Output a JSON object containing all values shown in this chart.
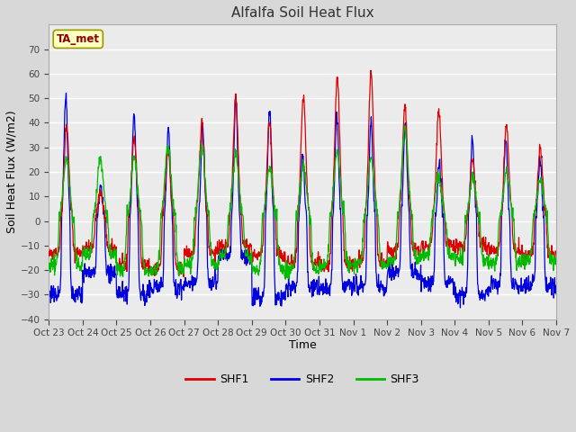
{
  "title": "Alfalfa Soil Heat Flux",
  "xlabel": "Time",
  "ylabel": "Soil Heat Flux (W/m2)",
  "ylim": [
    -40,
    80
  ],
  "yticks": [
    -40,
    -30,
    -20,
    -10,
    0,
    10,
    20,
    30,
    40,
    50,
    60,
    70
  ],
  "x_tick_labels": [
    "Oct 23",
    "Oct 24",
    "Oct 25",
    "Oct 26",
    "Oct 27",
    "Oct 28",
    "Oct 29",
    "Oct 30",
    "Oct 31",
    "Nov 1",
    "Nov 2",
    "Nov 3",
    "Nov 4",
    "Nov 5",
    "Nov 6",
    "Nov 7"
  ],
  "legend_labels": [
    "SHF1",
    "SHF2",
    "SHF3"
  ],
  "line_colors": [
    "#dd0000",
    "#0000dd",
    "#00bb00"
  ],
  "annotation_text": "TA_met",
  "annotation_color": "#8b0000",
  "annotation_bg": "#ffffc0",
  "bg_color": "#d8d8d8",
  "plot_bg": "#ebebeb",
  "grid_color": "#ffffff",
  "num_days": 15,
  "pts_per_day": 96,
  "shf1_amps": [
    39,
    12,
    34,
    29,
    40,
    51,
    40,
    51,
    58,
    60,
    46,
    45,
    25,
    39,
    30
  ],
  "shf2_amps": [
    52,
    15,
    44,
    39,
    39,
    51,
    46,
    27,
    44,
    41,
    41,
    24,
    34,
    33,
    25
  ],
  "shf3_amps": [
    25,
    26,
    26,
    30,
    30,
    27,
    22,
    22,
    28,
    26,
    38,
    18,
    18,
    20,
    18
  ],
  "shf1_nights": [
    -13,
    -11,
    -18,
    -20,
    -13,
    -10,
    -14,
    -17,
    -18,
    -17,
    -12,
    -10,
    -10,
    -12,
    -14
  ],
  "shf2_nights": [
    -30,
    -21,
    -30,
    -27,
    -25,
    -14,
    -31,
    -27,
    -27,
    -27,
    -21,
    -25,
    -30,
    -26,
    -26
  ],
  "shf3_nights": [
    -18,
    -14,
    -20,
    -20,
    -18,
    -14,
    -20,
    -20,
    -18,
    -18,
    -16,
    -14,
    -16,
    -17,
    -16
  ]
}
